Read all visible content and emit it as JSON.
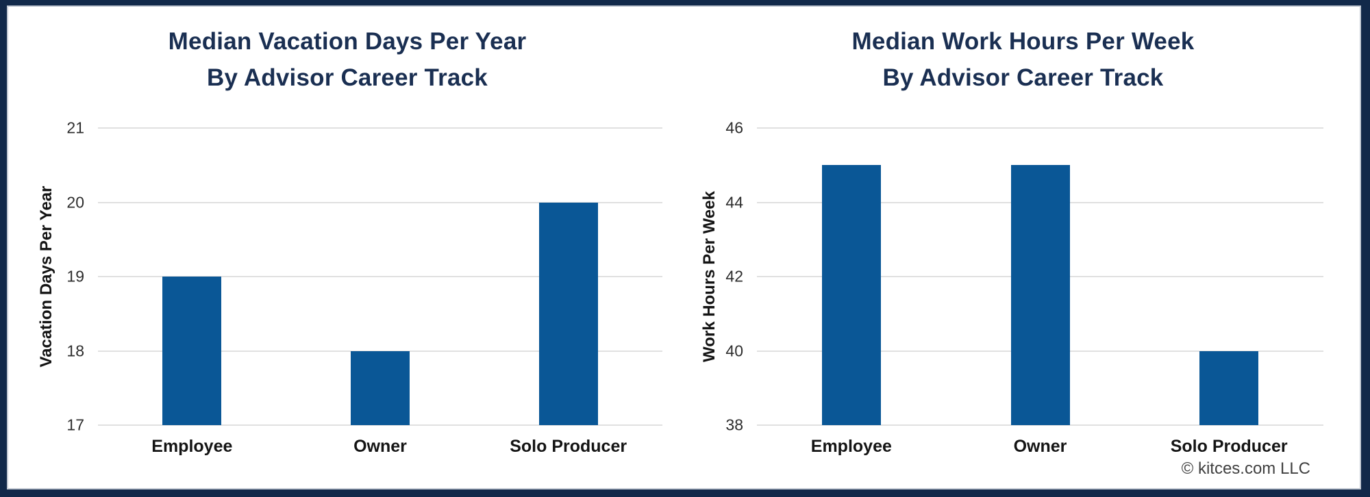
{
  "page": {
    "footer": "© kitces.com LLC"
  },
  "colors": {
    "frame": "#12294a",
    "card": "#ffffff",
    "bar": "#0a5796",
    "title": "#1a2f52",
    "gridline": "#e0e0e0",
    "tick_text": "#2d2d2d",
    "label_text": "#141414",
    "footer_text": "#404040"
  },
  "chart_data": [
    {
      "type": "bar",
      "title_line1": "Median Vacation Days Per Year",
      "title_line2": "By Advisor Career Track",
      "categories": [
        "Employee",
        "Owner",
        "Solo Producer"
      ],
      "values": [
        19,
        18,
        20
      ],
      "xlabel": "",
      "ylabel": "Vacation Days Per Year",
      "ylim": [
        17,
        21
      ],
      "yticks": [
        17,
        18,
        19,
        20,
        21
      ],
      "grid": true,
      "legend": "none"
    },
    {
      "type": "bar",
      "title_line1": "Median Work Hours Per Week",
      "title_line2": "By Advisor Career Track",
      "categories": [
        "Employee",
        "Owner",
        "Solo Producer"
      ],
      "values": [
        45,
        45,
        40
      ],
      "xlabel": "",
      "ylabel": "Work Hours Per Week",
      "ylim": [
        38,
        46
      ],
      "yticks": [
        38,
        40,
        42,
        44,
        46
      ],
      "grid": true,
      "legend": "none"
    }
  ]
}
